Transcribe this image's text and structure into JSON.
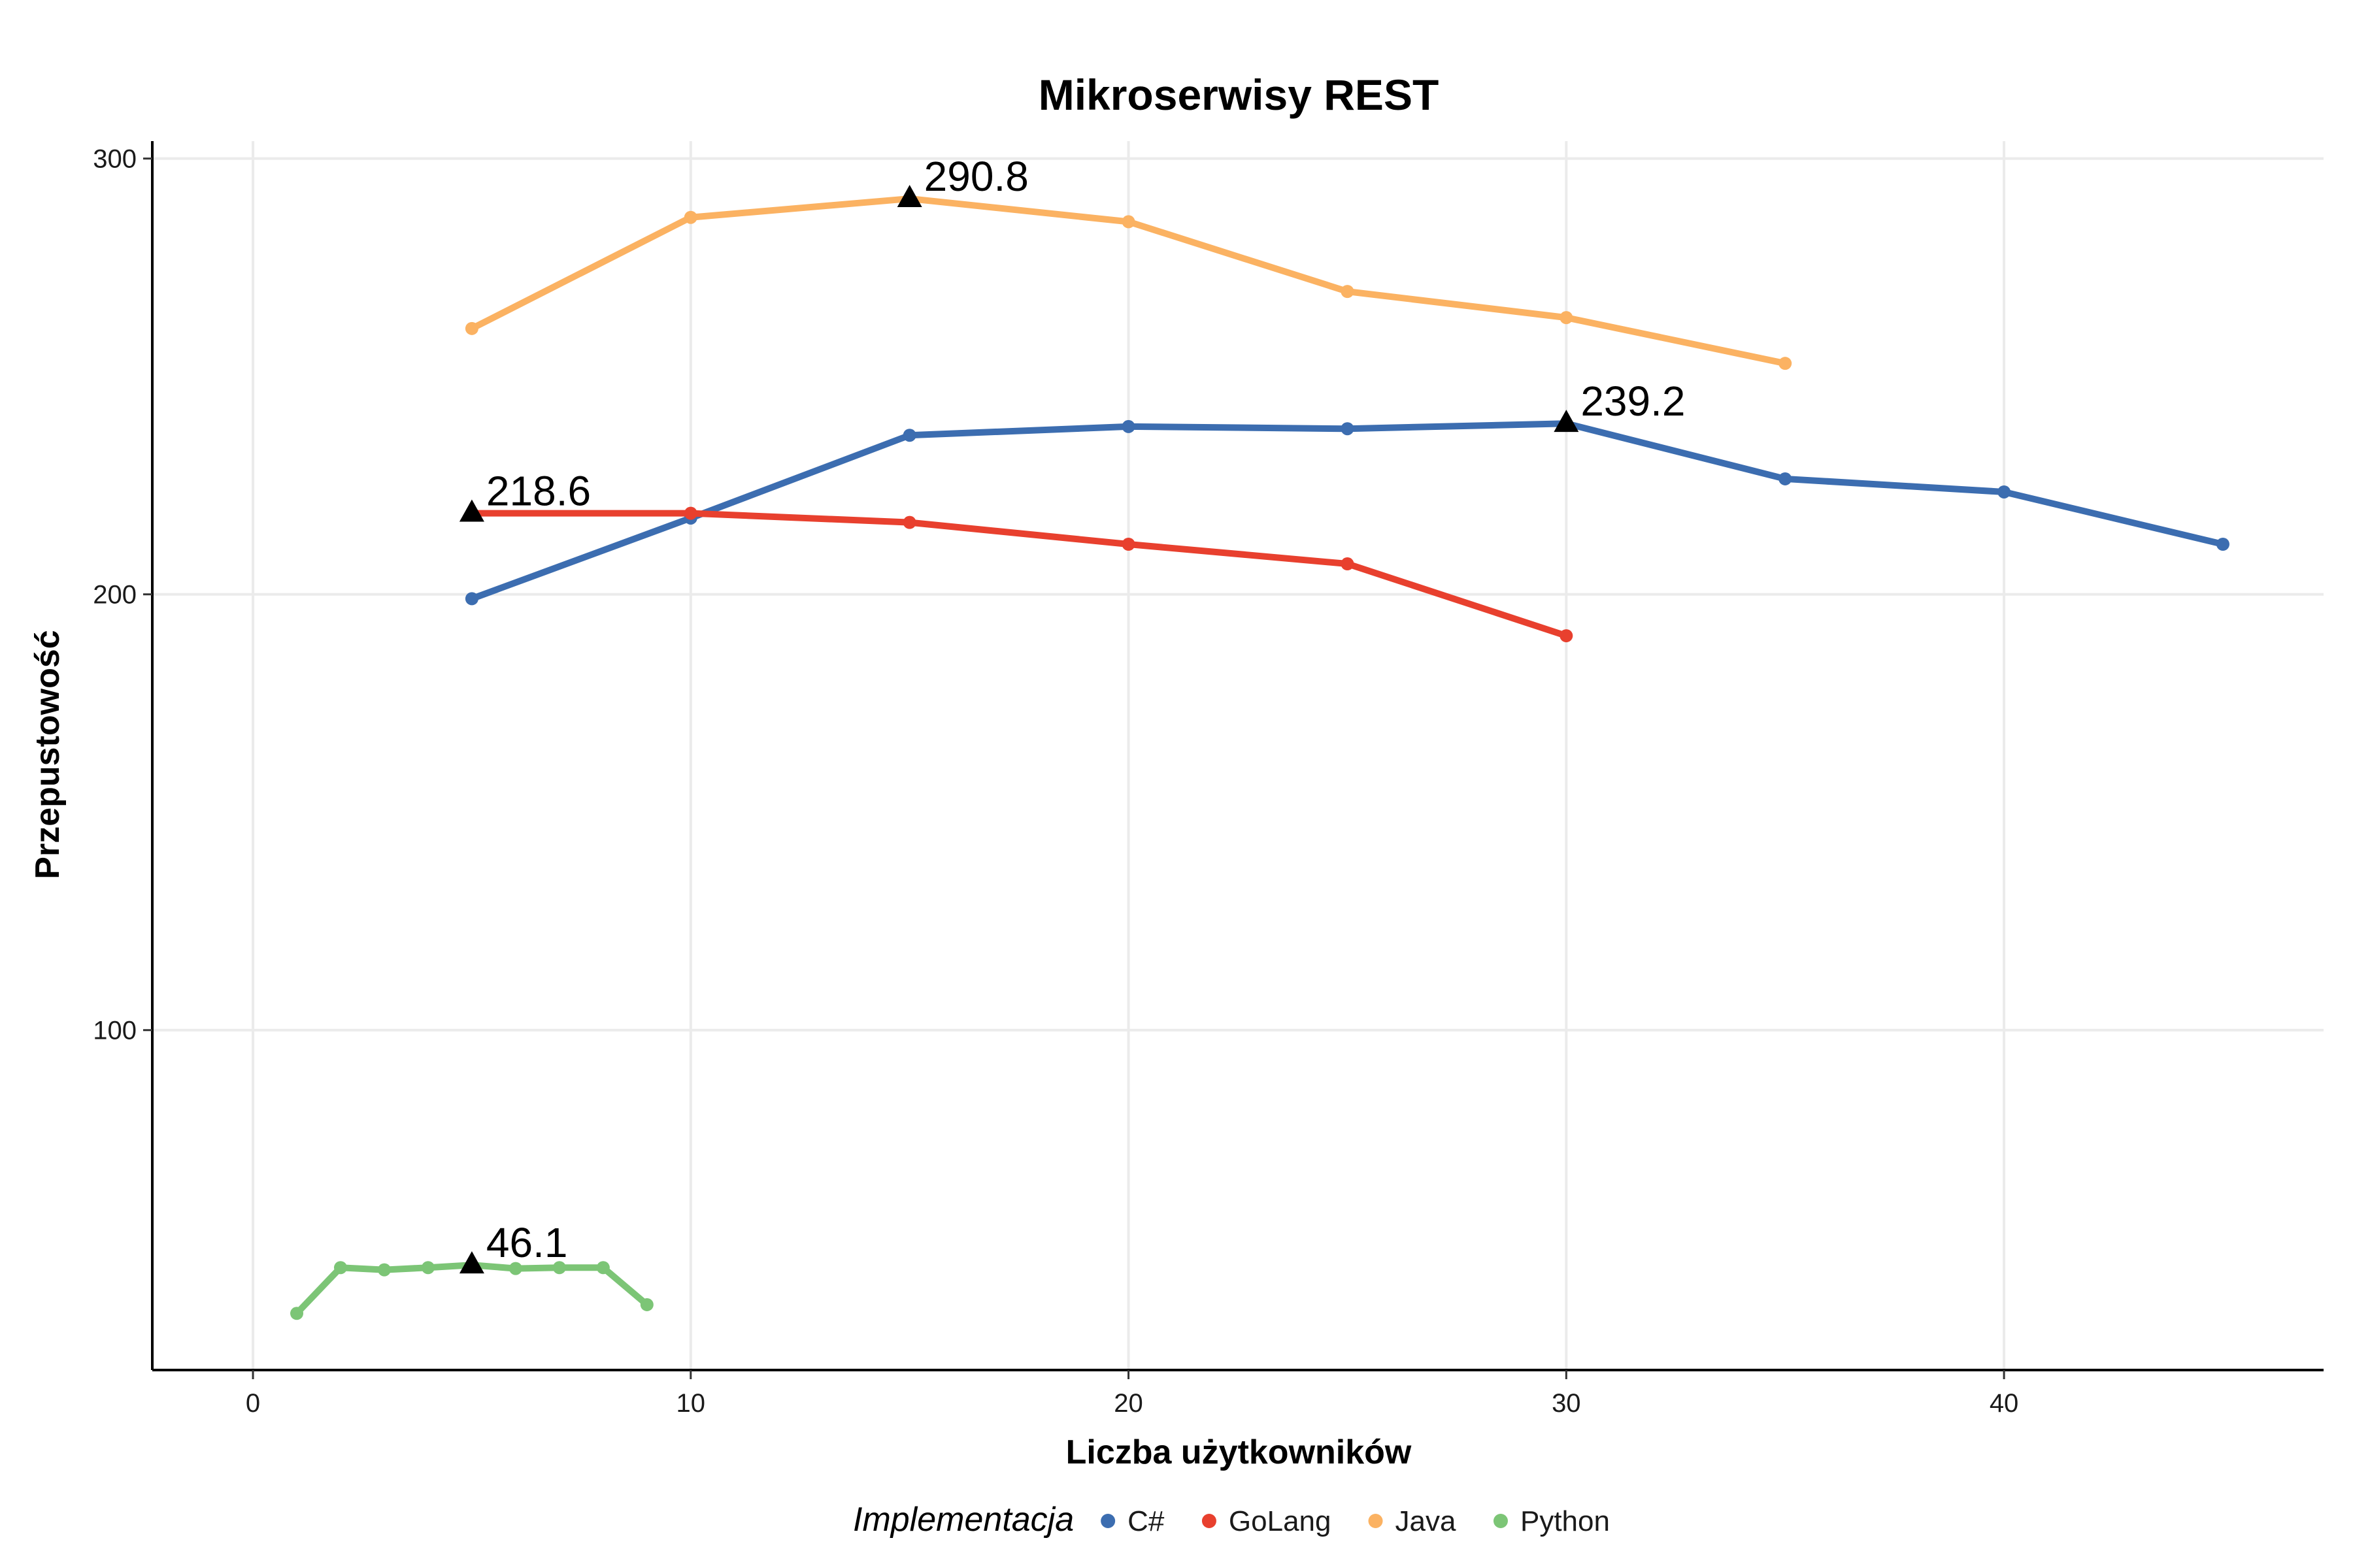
{
  "chart_data": {
    "type": "line",
    "title": "Mikroserwisy REST",
    "xlabel": "Liczba użytkowników",
    "ylabel": "Przepustowość",
    "xlim": [
      -2.3,
      47.3
    ],
    "ylim": [
      22,
      304
    ],
    "x_ticks": [
      0,
      10,
      20,
      30,
      40
    ],
    "y_ticks": [
      100,
      200,
      300
    ],
    "grid": true,
    "legend": {
      "title": "Implementacja",
      "position": "bottom"
    },
    "series": [
      {
        "name": "C#",
        "color": "#3c6db0",
        "x": [
          5,
          10,
          15,
          20,
          25,
          30,
          35,
          40,
          45
        ],
        "y": [
          199,
          217.5,
          236.5,
          238.5,
          238,
          239.2,
          226.5,
          223.5,
          211.5
        ]
      },
      {
        "name": "GoLang",
        "color": "#e8402e",
        "x": [
          5,
          10,
          15,
          20,
          25,
          30
        ],
        "y": [
          218.6,
          218.6,
          216.5,
          211.5,
          207,
          190.5
        ]
      },
      {
        "name": "Java",
        "color": "#fbb262",
        "x": [
          5,
          10,
          15,
          20,
          25,
          30,
          35
        ],
        "y": [
          261,
          286.5,
          290.8,
          285.5,
          269.5,
          263.5,
          253
        ]
      },
      {
        "name": "Python",
        "color": "#7cc576",
        "x": [
          1,
          2,
          3,
          4,
          5,
          6,
          7,
          8,
          9
        ],
        "y": [
          35,
          45.5,
          45,
          45.5,
          46.1,
          45.3,
          45.5,
          45.5,
          37
        ]
      }
    ],
    "annotations": [
      {
        "x": 15,
        "y": 290.8,
        "label": "290.8"
      },
      {
        "x": 30,
        "y": 239.2,
        "label": "239.2"
      },
      {
        "x": 5,
        "y": 218.6,
        "label": "218.6"
      },
      {
        "x": 5,
        "y": 46.1,
        "label": "46.1"
      }
    ]
  }
}
